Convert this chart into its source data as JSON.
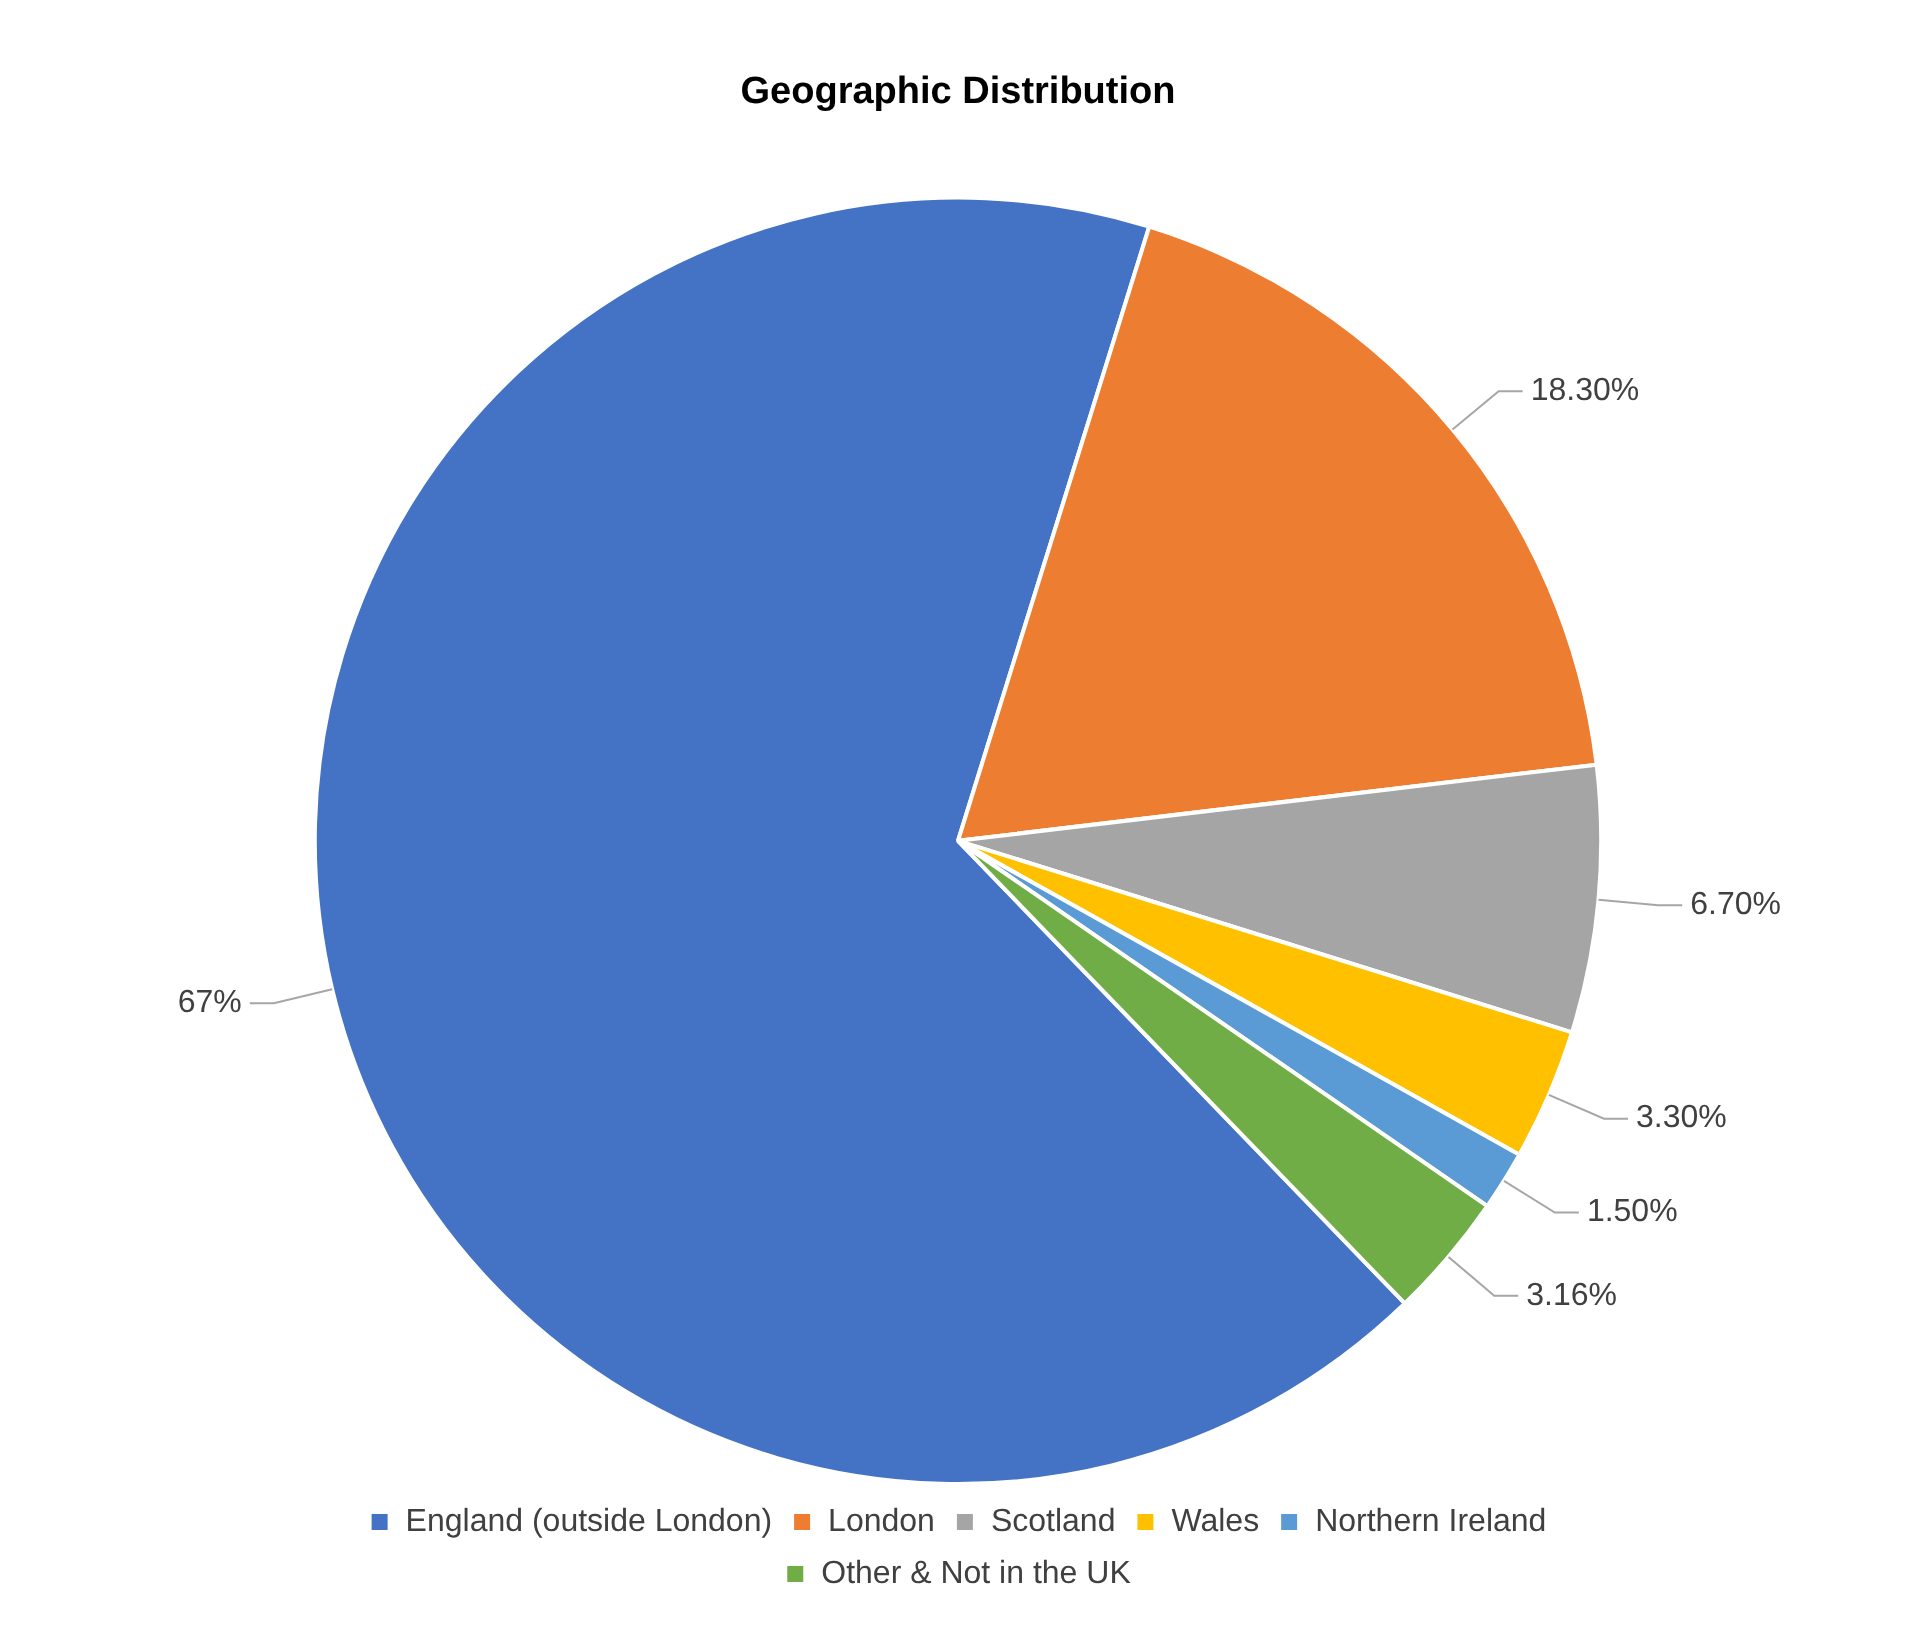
{
  "chart_data": {
    "type": "pie",
    "title": "Geographic Distribution",
    "categories": [
      "England (outside London)",
      "London",
      "Scotland",
      "Wales",
      "Northern Ireland",
      "Other & Not in the UK"
    ],
    "values": [
      67,
      18.3,
      6.7,
      3.3,
      1.5,
      3.16
    ],
    "value_labels": [
      "67%",
      "18.30%",
      "6.70%",
      "3.30%",
      "1.50%",
      "3.16%"
    ],
    "colors": [
      "#4472c4",
      "#ed7d31",
      "#a5a5a5",
      "#ffc000",
      "#5b9bd5",
      "#70ad47"
    ],
    "legend": "bottom"
  }
}
